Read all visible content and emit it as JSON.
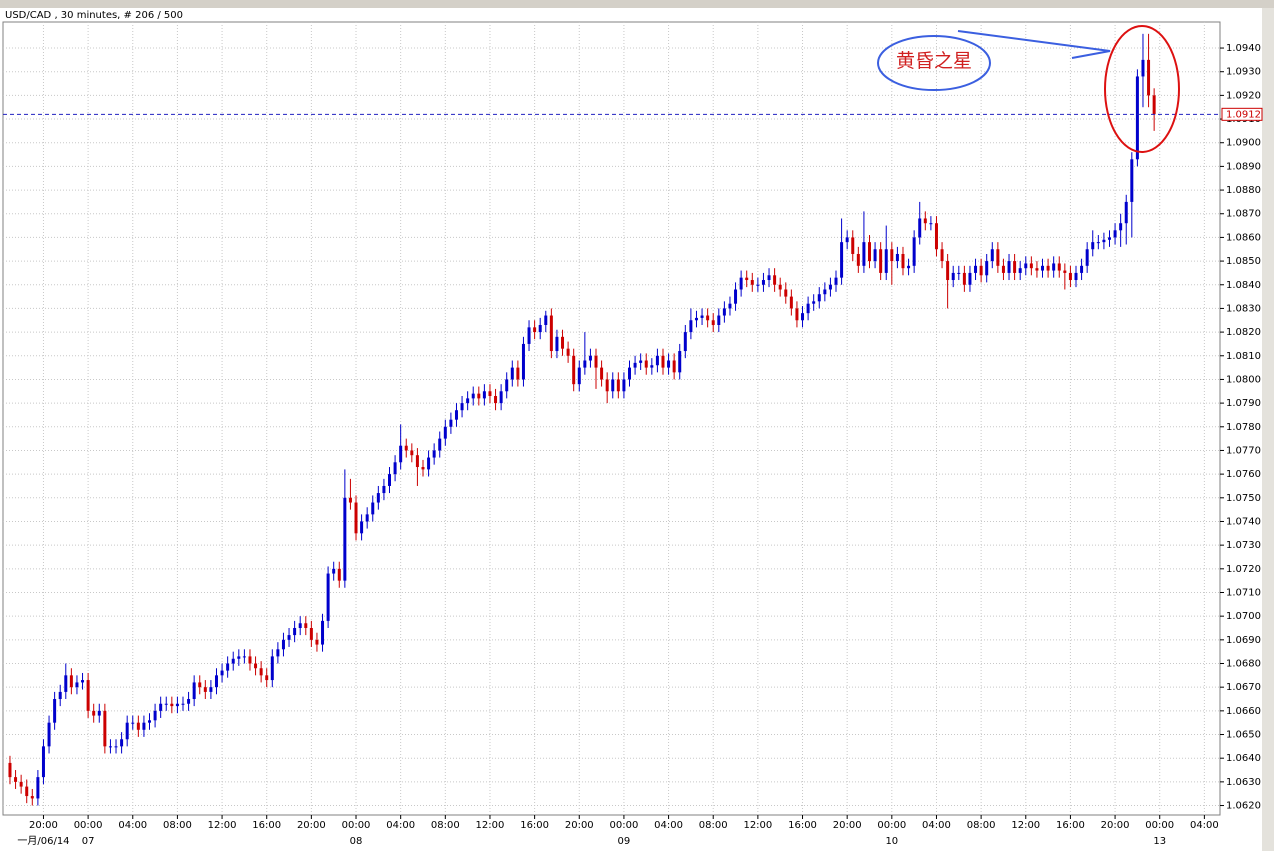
{
  "chart_data": {
    "type": "candlestick",
    "title": "USD/CAD , 30 minutes, # 206 / 500",
    "annotation": "黄昏之星",
    "up_color": "#0000cc",
    "down_color": "#cc0000",
    "grid": true,
    "xlim": [
      -1.25,
      216.8
    ],
    "ylim": [
      1.0616,
      1.0951
    ],
    "yticks": [
      {
        "value": 1.062,
        "label": "1.0620"
      },
      {
        "value": 1.063,
        "label": "1.0630"
      },
      {
        "value": 1.064,
        "label": "1.0640"
      },
      {
        "value": 1.065,
        "label": "1.0650"
      },
      {
        "value": 1.066,
        "label": "1.0660"
      },
      {
        "value": 1.067,
        "label": "1.0670"
      },
      {
        "value": 1.068,
        "label": "1.0680"
      },
      {
        "value": 1.069,
        "label": "1.0690"
      },
      {
        "value": 1.07,
        "label": "1.0700"
      },
      {
        "value": 1.071,
        "label": "1.0710"
      },
      {
        "value": 1.072,
        "label": "1.0720"
      },
      {
        "value": 1.073,
        "label": "1.0730"
      },
      {
        "value": 1.074,
        "label": "1.0740"
      },
      {
        "value": 1.075,
        "label": "1.0750"
      },
      {
        "value": 1.076,
        "label": "1.0760"
      },
      {
        "value": 1.077,
        "label": "1.0770"
      },
      {
        "value": 1.078,
        "label": "1.0780"
      },
      {
        "value": 1.079,
        "label": "1.0790"
      },
      {
        "value": 1.08,
        "label": "1.0800"
      },
      {
        "value": 1.081,
        "label": "1.0810"
      },
      {
        "value": 1.082,
        "label": "1.0820"
      },
      {
        "value": 1.083,
        "label": "1.0830"
      },
      {
        "value": 1.084,
        "label": "1.0840"
      },
      {
        "value": 1.085,
        "label": "1.0850"
      },
      {
        "value": 1.086,
        "label": "1.0860"
      },
      {
        "value": 1.087,
        "label": "1.0870"
      },
      {
        "value": 1.088,
        "label": "1.0880"
      },
      {
        "value": 1.089,
        "label": "1.0890"
      },
      {
        "value": 1.09,
        "label": "1.0900"
      },
      {
        "value": 1.091,
        "label": "1.0910"
      },
      {
        "value": 1.092,
        "label": "1.0920"
      },
      {
        "value": 1.093,
        "label": "1.0930"
      },
      {
        "value": 1.094,
        "label": "1.0940"
      }
    ],
    "xticks": [
      {
        "value": 6,
        "label": "20:00"
      },
      {
        "value": 14,
        "label": "00:00"
      },
      {
        "value": 22,
        "label": "04:00"
      },
      {
        "value": 30,
        "label": "08:00"
      },
      {
        "value": 38,
        "label": "12:00"
      },
      {
        "value": 46,
        "label": "16:00"
      },
      {
        "value": 54,
        "label": "20:00"
      },
      {
        "value": 62,
        "label": "00:00"
      },
      {
        "value": 70,
        "label": "04:00"
      },
      {
        "value": 78,
        "label": "08:00"
      },
      {
        "value": 86,
        "label": "12:00"
      },
      {
        "value": 94,
        "label": "16:00"
      },
      {
        "value": 102,
        "label": "20:00"
      },
      {
        "value": 110,
        "label": "00:00"
      },
      {
        "value": 118,
        "label": "04:00"
      },
      {
        "value": 126,
        "label": "08:00"
      },
      {
        "value": 134,
        "label": "12:00"
      },
      {
        "value": 142,
        "label": "16:00"
      },
      {
        "value": 150,
        "label": "20:00"
      },
      {
        "value": 158,
        "label": "00:00"
      },
      {
        "value": 166,
        "label": "04:00"
      },
      {
        "value": 174,
        "label": "08:00"
      },
      {
        "value": 182,
        "label": "12:00"
      },
      {
        "value": 190,
        "label": "16:00"
      },
      {
        "value": 198,
        "label": "20:00"
      },
      {
        "value": 206,
        "label": "00:00"
      },
      {
        "value": 214,
        "label": "04:00"
      }
    ],
    "date_labels": [
      {
        "value": 6,
        "label": "一月/06/14"
      },
      {
        "value": 14,
        "label": "07"
      },
      {
        "value": 62,
        "label": "08"
      },
      {
        "value": 110,
        "label": "09"
      },
      {
        "value": 158,
        "label": "10"
      },
      {
        "value": 206,
        "label": "13"
      }
    ],
    "last_price": {
      "value": 1.0912,
      "label": "1.0912"
    },
    "open": [
      1.0638,
      1.0632,
      1.063,
      1.0628,
      1.0624,
      1.0623,
      1.0632,
      1.0645,
      1.0655,
      1.0665,
      1.0668,
      1.0675,
      1.067,
      1.0672,
      1.0673,
      1.066,
      1.0658,
      1.066,
      1.0645,
      1.0645,
      1.0645,
      1.0648,
      1.0655,
      1.0655,
      1.0652,
      1.0655,
      1.0656,
      1.066,
      1.0663,
      1.0663,
      1.0662,
      1.0663,
      1.0663,
      1.0665,
      1.0672,
      1.067,
      1.0668,
      1.067,
      1.0675,
      1.0677,
      1.068,
      1.0682,
      1.0683,
      1.0683,
      1.068,
      1.0678,
      1.0675,
      1.0673,
      1.0683,
      1.0686,
      1.069,
      1.0692,
      1.0695,
      1.0697,
      1.0695,
      1.069,
      1.0688,
      1.0698,
      1.0718,
      1.072,
      1.0715,
      1.075,
      1.0748,
      1.0735,
      1.074,
      1.0743,
      1.0748,
      1.0752,
      1.0755,
      1.076,
      1.0765,
      1.0772,
      1.077,
      1.0768,
      1.0763,
      1.0762,
      1.0767,
      1.077,
      1.0775,
      1.078,
      1.0783,
      1.0787,
      1.079,
      1.0792,
      1.0794,
      1.0792,
      1.0795,
      1.0793,
      1.079,
      1.0795,
      1.08,
      1.0805,
      1.08,
      1.0815,
      1.0822,
      1.082,
      1.0823,
      1.0827,
      1.0812,
      1.0818,
      1.0813,
      1.081,
      1.0798,
      1.0805,
      1.0808,
      1.081,
      1.0805,
      1.08,
      1.0795,
      1.08,
      1.0795,
      1.08,
      1.0805,
      1.0807,
      1.0808,
      1.0805,
      1.0806,
      1.081,
      1.0805,
      1.0808,
      1.0803,
      1.0812,
      1.082,
      1.0825,
      1.0826,
      1.0827,
      1.0825,
      1.0823,
      1.0827,
      1.083,
      1.0832,
      1.0838,
      1.0843,
      1.0842,
      1.084,
      1.084,
      1.0842,
      1.0844,
      1.084,
      1.0838,
      1.0835,
      1.083,
      1.0825,
      1.0828,
      1.0832,
      1.0833,
      1.0836,
      1.0838,
      1.084,
      1.0843,
      1.0858,
      1.086,
      1.0853,
      1.0848,
      1.0858,
      1.085,
      1.0855,
      1.0845,
      1.0855,
      1.085,
      1.0853,
      1.0847,
      1.0848,
      1.086,
      1.0868,
      1.0866,
      1.0866,
      1.0855,
      1.085,
      1.0842,
      1.0845,
      1.0845,
      1.084,
      1.0845,
      1.0848,
      1.0844,
      1.085,
      1.0855,
      1.0848,
      1.0845,
      1.085,
      1.0845,
      1.0847,
      1.0849,
      1.0847,
      1.0846,
      1.0848,
      1.0846,
      1.0849,
      1.0846,
      1.0845,
      1.0842,
      1.0845,
      1.0848,
      1.0855,
      1.0858,
      1.0858,
      1.0859,
      1.086,
      1.0863,
      1.0866,
      1.0875,
      1.0893,
      1.0928,
      1.0935,
      1.092
    ],
    "high": [
      1.0641,
      1.0635,
      1.0633,
      1.0631,
      1.0627,
      1.0635,
      1.0648,
      1.0658,
      1.0668,
      1.0671,
      1.068,
      1.0678,
      1.0675,
      1.0676,
      1.0676,
      1.0663,
      1.0663,
      1.0663,
      1.0648,
      1.0648,
      1.0651,
      1.0658,
      1.0658,
      1.0658,
      1.0658,
      1.0659,
      1.0663,
      1.0666,
      1.0666,
      1.0666,
      1.0666,
      1.0666,
      1.0668,
      1.0675,
      1.0675,
      1.0673,
      1.0673,
      1.0678,
      1.068,
      1.0683,
      1.0685,
      1.0686,
      1.0686,
      1.0686,
      1.0683,
      1.0681,
      1.0678,
      1.0686,
      1.0689,
      1.0693,
      1.0695,
      1.0698,
      1.07,
      1.07,
      1.0698,
      1.0693,
      1.0701,
      1.0721,
      1.0723,
      1.0723,
      1.0762,
      1.0758,
      1.0751,
      1.0743,
      1.0746,
      1.0751,
      1.0755,
      1.0758,
      1.0763,
      1.0768,
      1.0781,
      1.0775,
      1.0773,
      1.0771,
      1.0766,
      1.077,
      1.0773,
      1.0778,
      1.0783,
      1.0786,
      1.079,
      1.0793,
      1.0795,
      1.0797,
      1.0797,
      1.0798,
      1.0798,
      1.0796,
      1.0798,
      1.0803,
      1.0808,
      1.0808,
      1.0818,
      1.0825,
      1.0825,
      1.0826,
      1.0829,
      1.083,
      1.0821,
      1.0821,
      1.0816,
      1.0813,
      1.0808,
      1.082,
      1.0813,
      1.0813,
      1.0808,
      1.0803,
      1.0803,
      1.0803,
      1.0803,
      1.0808,
      1.081,
      1.0811,
      1.0811,
      1.0809,
      1.0813,
      1.0813,
      1.0811,
      1.0811,
      1.0815,
      1.0823,
      1.083,
      1.0829,
      1.083,
      1.083,
      1.0828,
      1.083,
      1.0833,
      1.0835,
      1.0841,
      1.0846,
      1.0846,
      1.0845,
      1.0843,
      1.0845,
      1.0847,
      1.0847,
      1.0843,
      1.0841,
      1.0838,
      1.0833,
      1.0831,
      1.0835,
      1.0836,
      1.0839,
      1.0841,
      1.0843,
      1.0846,
      1.0868,
      1.0863,
      1.0863,
      1.0856,
      1.0871,
      1.0861,
      1.0858,
      1.0858,
      1.0865,
      1.0858,
      1.0856,
      1.0856,
      1.0851,
      1.0863,
      1.0875,
      1.0871,
      1.0869,
      1.0869,
      1.0858,
      1.0853,
      1.0848,
      1.0848,
      1.0848,
      1.0848,
      1.0851,
      1.0851,
      1.0853,
      1.0858,
      1.0858,
      1.0851,
      1.0853,
      1.0853,
      1.085,
      1.0852,
      1.0852,
      1.085,
      1.0851,
      1.0851,
      1.0852,
      1.0852,
      1.0849,
      1.0848,
      1.0848,
      1.0851,
      1.0858,
      1.0863,
      1.0861,
      1.0862,
      1.0863,
      1.0866,
      1.087,
      1.0878,
      1.0896,
      1.0931,
      1.0946,
      1.0946,
      1.0923
    ],
    "low": [
      1.0629,
      1.0627,
      1.0625,
      1.0621,
      1.062,
      1.062,
      1.0629,
      1.0642,
      1.0652,
      1.0662,
      1.0665,
      1.0667,
      1.0667,
      1.0669,
      1.0657,
      1.0655,
      1.0655,
      1.0642,
      1.0642,
      1.0642,
      1.0642,
      1.0645,
      1.0652,
      1.0649,
      1.0649,
      1.0652,
      1.0653,
      1.0657,
      1.066,
      1.0659,
      1.0659,
      1.066,
      1.066,
      1.0662,
      1.0667,
      1.0665,
      1.0665,
      1.0667,
      1.0672,
      1.0674,
      1.0677,
      1.0679,
      1.068,
      1.0677,
      1.0675,
      1.0672,
      1.067,
      1.067,
      1.068,
      1.0683,
      1.0687,
      1.0689,
      1.0692,
      1.0692,
      1.0687,
      1.0685,
      1.0685,
      1.0695,
      1.0715,
      1.0712,
      1.0712,
      1.0745,
      1.0732,
      1.0732,
      1.0737,
      1.074,
      1.0745,
      1.0749,
      1.0752,
      1.0757,
      1.0762,
      1.0767,
      1.0765,
      1.0755,
      1.0759,
      1.0759,
      1.0764,
      1.0767,
      1.0772,
      1.0777,
      1.078,
      1.0784,
      1.0787,
      1.0789,
      1.0789,
      1.0789,
      1.079,
      1.0787,
      1.0787,
      1.0792,
      1.0797,
      1.0797,
      1.0797,
      1.0812,
      1.0817,
      1.0817,
      1.082,
      1.0809,
      1.0809,
      1.081,
      1.0807,
      1.0795,
      1.0795,
      1.0802,
      1.0805,
      1.0796,
      1.0797,
      1.079,
      1.0792,
      1.0792,
      1.0792,
      1.0797,
      1.0802,
      1.0804,
      1.0802,
      1.0802,
      1.0803,
      1.0802,
      1.0802,
      1.08,
      1.08,
      1.0809,
      1.0817,
      1.0822,
      1.0823,
      1.0822,
      1.082,
      1.082,
      1.0824,
      1.0827,
      1.0829,
      1.0835,
      1.0839,
      1.0837,
      1.0837,
      1.0837,
      1.0839,
      1.0837,
      1.0835,
      1.0832,
      1.0827,
      1.0822,
      1.0822,
      1.0825,
      1.0829,
      1.083,
      1.0833,
      1.0835,
      1.0837,
      1.084,
      1.0855,
      1.085,
      1.0845,
      1.0845,
      1.0847,
      1.0847,
      1.0842,
      1.0842,
      1.084,
      1.0847,
      1.0844,
      1.0844,
      1.0845,
      1.0857,
      1.0863,
      1.0863,
      1.0852,
      1.0847,
      1.083,
      1.0839,
      1.0842,
      1.0837,
      1.0837,
      1.0842,
      1.0841,
      1.0841,
      1.0847,
      1.0845,
      1.0842,
      1.0842,
      1.0842,
      1.0842,
      1.0844,
      1.0844,
      1.0843,
      1.0843,
      1.0843,
      1.0843,
      1.0843,
      1.0838,
      1.0839,
      1.0839,
      1.0842,
      1.0845,
      1.0852,
      1.0855,
      1.0855,
      1.0856,
      1.0857,
      1.0856,
      1.0857,
      1.086,
      1.089,
      1.0915,
      1.0915,
      1.0905
    ],
    "close": [
      1.0632,
      1.063,
      1.0628,
      1.0624,
      1.0623,
      1.0632,
      1.0645,
      1.0655,
      1.0665,
      1.0668,
      1.0675,
      1.067,
      1.0672,
      1.0673,
      1.066,
      1.0658,
      1.066,
      1.0645,
      1.0645,
      1.0645,
      1.0648,
      1.0655,
      1.0655,
      1.0652,
      1.0655,
      1.0656,
      1.066,
      1.0663,
      1.0663,
      1.0662,
      1.0663,
      1.0663,
      1.0665,
      1.0672,
      1.067,
      1.0668,
      1.067,
      1.0675,
      1.0677,
      1.068,
      1.0682,
      1.0683,
      1.0683,
      1.068,
      1.0678,
      1.0675,
      1.0673,
      1.0683,
      1.0686,
      1.069,
      1.0692,
      1.0695,
      1.0697,
      1.0695,
      1.069,
      1.0688,
      1.0698,
      1.0718,
      1.072,
      1.0715,
      1.075,
      1.0748,
      1.0735,
      1.074,
      1.0743,
      1.0748,
      1.0752,
      1.0755,
      1.076,
      1.0765,
      1.0772,
      1.077,
      1.0768,
      1.0763,
      1.0762,
      1.0767,
      1.077,
      1.0775,
      1.078,
      1.0783,
      1.0787,
      1.079,
      1.0792,
      1.0794,
      1.0792,
      1.0795,
      1.0793,
      1.079,
      1.0795,
      1.08,
      1.0805,
      1.08,
      1.0815,
      1.0822,
      1.082,
      1.0823,
      1.0827,
      1.0812,
      1.0818,
      1.0813,
      1.081,
      1.0798,
      1.0805,
      1.0808,
      1.081,
      1.0805,
      1.08,
      1.0795,
      1.08,
      1.0795,
      1.08,
      1.0805,
      1.0807,
      1.0808,
      1.0805,
      1.0806,
      1.081,
      1.0805,
      1.0808,
      1.0803,
      1.0812,
      1.082,
      1.0825,
      1.0826,
      1.0827,
      1.0825,
      1.0823,
      1.0827,
      1.083,
      1.0832,
      1.0838,
      1.0843,
      1.0842,
      1.084,
      1.084,
      1.0842,
      1.0844,
      1.084,
      1.0838,
      1.0835,
      1.083,
      1.0825,
      1.0828,
      1.0832,
      1.0833,
      1.0836,
      1.0838,
      1.084,
      1.0843,
      1.0858,
      1.086,
      1.0853,
      1.0848,
      1.0858,
      1.085,
      1.0855,
      1.0845,
      1.0855,
      1.085,
      1.0853,
      1.0847,
      1.0848,
      1.086,
      1.0868,
      1.0866,
      1.0866,
      1.0855,
      1.085,
      1.0842,
      1.0845,
      1.0845,
      1.084,
      1.0845,
      1.0848,
      1.0844,
      1.085,
      1.0855,
      1.0848,
      1.0845,
      1.085,
      1.0845,
      1.0847,
      1.0849,
      1.0847,
      1.0846,
      1.0848,
      1.0846,
      1.0849,
      1.0846,
      1.0845,
      1.0842,
      1.0845,
      1.0848,
      1.0855,
      1.0858,
      1.0858,
      1.0859,
      1.086,
      1.0863,
      1.0866,
      1.0875,
      1.0893,
      1.0928,
      1.0935,
      1.092,
      1.0912
    ]
  }
}
